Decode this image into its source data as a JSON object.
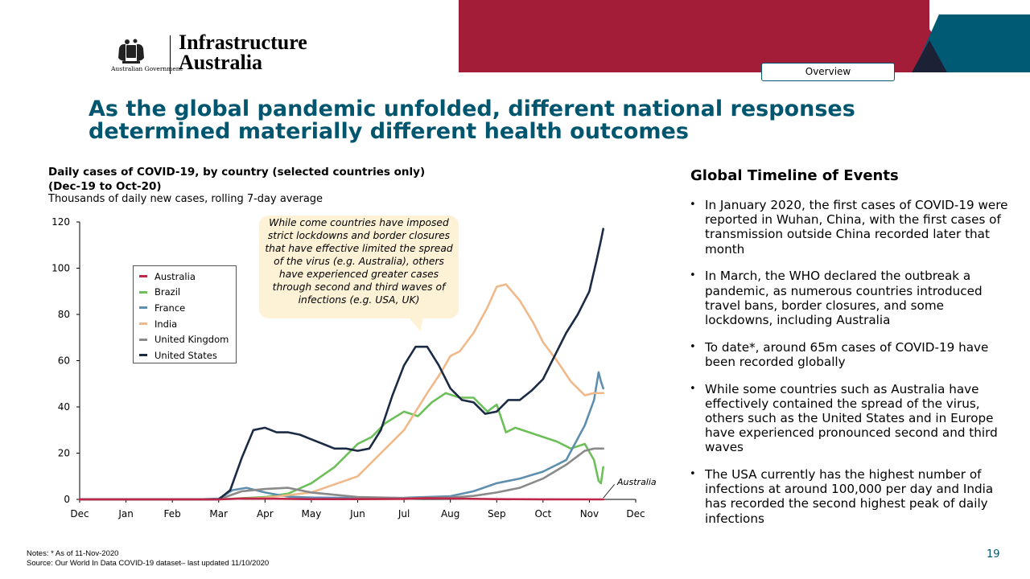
{
  "header": {
    "tab_label": "Overview",
    "logo": {
      "government_text": "Australian Government",
      "org_line1": "Infrastructure",
      "org_line2": "Australia"
    },
    "colors": {
      "red": "#a31d38",
      "teal": "#005a74",
      "navy": "#1c2135"
    }
  },
  "headline": "As the global pandemic unfolded, different national responses determined materially different health outcomes",
  "chart": {
    "title_line1": "Daily cases of COVID-19, by country (selected countries only)",
    "title_line2": "(Dec-19 to Oct-20)",
    "subtitle": "Thousands of daily new cases, rolling 7-day average",
    "callout": "While come countries have imposed strict lockdowns and border closures that have effective limited the spread of the virus (e.g. Australia), others have experienced greater cases through second and third waves of infections (e.g. USA, UK)",
    "australia_annotation": "Australia"
  },
  "chart_data": {
    "type": "line",
    "title": "Daily cases of COVID-19, by country (selected countries only) (Dec-19 to Oct-20)",
    "ylabel": "Thousands of daily new cases, rolling 7-day average",
    "x_tick_labels": [
      "Dec",
      "Jan",
      "Feb",
      "Mar",
      "Apr",
      "May",
      "Jun",
      "Jul",
      "Aug",
      "Sep",
      "Oct",
      "Nov",
      "Dec"
    ],
    "y_ticks": [
      0,
      20,
      40,
      60,
      80,
      100,
      120
    ],
    "ylim": [
      0,
      120
    ],
    "x_unit": "months since 1-Dec-2019",
    "xlim": [
      0,
      12
    ],
    "grid": false,
    "legend_position": "top-left",
    "series": [
      {
        "name": "Australia",
        "color": "#c0264a",
        "x": [
          0,
          1,
          2,
          3,
          3.5,
          4,
          5,
          6,
          7,
          7.5,
          8,
          9,
          10,
          11.3
        ],
        "y": [
          0,
          0,
          0,
          0,
          0.4,
          0.3,
          0.1,
          0.1,
          0.2,
          0.5,
          0.4,
          0.1,
          0.02,
          0.01
        ]
      },
      {
        "name": "Brazil",
        "color": "#6dbf5a",
        "x": [
          0,
          3,
          3.5,
          4,
          4.5,
          5,
          5.5,
          6,
          6.3,
          6.6,
          7,
          7.3,
          7.6,
          7.9,
          8.2,
          8.5,
          8.8,
          9,
          9.2,
          9.4,
          9.7,
          10,
          10.3,
          10.6,
          10.9,
          11.1,
          11.2,
          11.25,
          11.3
        ],
        "y": [
          0,
          0,
          0.5,
          1,
          2.5,
          7,
          14,
          24,
          27,
          33,
          38,
          36,
          42,
          46,
          44,
          44,
          38,
          41,
          29,
          31,
          29,
          27,
          25,
          22,
          24,
          17,
          8,
          7,
          14
        ]
      },
      {
        "name": "France",
        "color": "#5f8fae",
        "x": [
          0,
          2.5,
          3,
          3.3,
          3.6,
          4,
          4.5,
          5,
          6,
          7,
          8,
          8.5,
          9,
          9.5,
          10,
          10.5,
          10.9,
          11.1,
          11.2,
          11.25,
          11.3
        ],
        "y": [
          0,
          0,
          0.3,
          4,
          5,
          3,
          1.2,
          0.8,
          0.6,
          0.7,
          1.4,
          3.5,
          7,
          9,
          12,
          17,
          32,
          43,
          55,
          51,
          48
        ]
      },
      {
        "name": "India",
        "color": "#f0b98a",
        "x": [
          0,
          3,
          4,
          5,
          6,
          6.5,
          7,
          7.5,
          7.8,
          8,
          8.2,
          8.5,
          8.8,
          9,
          9.2,
          9.5,
          9.8,
          10,
          10.3,
          10.6,
          10.9,
          11.1,
          11.3
        ],
        "y": [
          0,
          0,
          0.7,
          3,
          10,
          20,
          30,
          46,
          55,
          62,
          64,
          72,
          83,
          92,
          93,
          86,
          76,
          68,
          60,
          51,
          45,
          46,
          46
        ]
      },
      {
        "name": "United Kingdom",
        "color": "#8a8a8a",
        "x": [
          0,
          3,
          3.5,
          4,
          4.5,
          5,
          6,
          7,
          8,
          8.5,
          9,
          9.5,
          10,
          10.5,
          10.9,
          11.1,
          11.3
        ],
        "y": [
          0,
          0,
          3.5,
          4.5,
          5,
          3,
          1,
          0.6,
          0.8,
          1.5,
          3,
          5,
          9,
          15,
          21,
          22,
          22
        ]
      },
      {
        "name": "United States",
        "color": "#1c2b45",
        "x": [
          0,
          3,
          3.25,
          3.5,
          3.75,
          4,
          4.25,
          4.5,
          4.75,
          5,
          5.25,
          5.5,
          5.75,
          6,
          6.25,
          6.5,
          6.75,
          7,
          7.25,
          7.5,
          7.75,
          8,
          8.25,
          8.5,
          8.75,
          9,
          9.25,
          9.5,
          9.75,
          10,
          10.25,
          10.5,
          10.75,
          11,
          11.15,
          11.25,
          11.3
        ],
        "y": [
          0,
          0,
          4,
          18,
          30,
          31,
          29,
          29,
          28,
          26,
          24,
          22,
          22,
          21,
          22,
          30,
          45,
          58,
          66,
          66,
          58,
          48,
          43,
          42,
          37,
          38,
          43,
          43,
          47,
          52,
          62,
          72,
          80,
          90,
          103,
          112,
          117
        ]
      }
    ]
  },
  "sidebar": {
    "title": "Global Timeline of Events",
    "bullets": [
      "In January 2020, the first cases of COVID-19 were reported in Wuhan, China, with the first cases of transmission outside China recorded later that month",
      "In March, the WHO declared the outbreak a pandemic, as numerous countries introduced travel bans, border closures, and some lockdowns, including Australia",
      "To date*, around 65m cases of COVID-19 have been recorded globally",
      "While some countries such as Australia have effectively contained the spread of the virus, others such as the United States and in Europe have experienced pronounced second and third waves",
      "The USA currently has the highest number of infections at around 100,000 per day and India has recorded the second highest peak of daily infections"
    ]
  },
  "footer": {
    "notes": "Notes:   * As of 11-Nov-2020",
    "source": "Source: Our World In Data COVID-19 dataset– last updated 11/10/2020",
    "page_number": "19"
  }
}
